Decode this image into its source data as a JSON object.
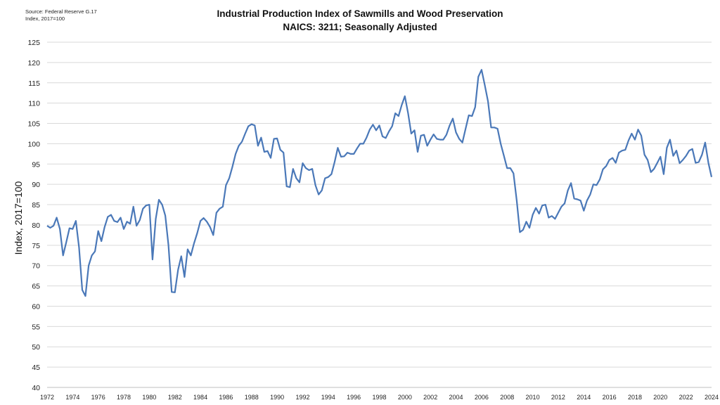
{
  "source_note": {
    "line1": "Source: Federal Reserve G.17",
    "line2": "Index, 2017=100"
  },
  "chart_data": {
    "type": "line",
    "title": "Industrial Production Index of Sawmills and Wood Preservation",
    "subtitle": "NAICS: 3211; Seasonally Adjusted",
    "xlabel": "",
    "ylabel": "Index, 2017=100",
    "ylim": [
      40,
      125
    ],
    "yticks": [
      40,
      45,
      50,
      55,
      60,
      65,
      70,
      75,
      80,
      85,
      90,
      95,
      100,
      105,
      110,
      115,
      120,
      125
    ],
    "xlim": [
      1972,
      2024
    ],
    "xticks": [
      1972,
      1974,
      1976,
      1978,
      1980,
      1982,
      1984,
      1986,
      1988,
      1990,
      1992,
      1994,
      1996,
      1998,
      2000,
      2002,
      2004,
      2006,
      2008,
      2010,
      2012,
      2014,
      2016,
      2018,
      2020,
      2022,
      2024
    ],
    "grid": "horizontal",
    "line_color": "#4a78b8",
    "series": [
      {
        "x": [
          1972.0,
          1972.25,
          1972.5,
          1972.75,
          1973.0,
          1973.25,
          1973.5,
          1973.75,
          1974.0,
          1974.25,
          1974.5,
          1974.75,
          1975.0,
          1975.25,
          1975.5,
          1975.75,
          1976.0,
          1976.25,
          1976.5,
          1976.75,
          1977.0,
          1977.25,
          1977.5,
          1977.75,
          1978.0,
          1978.25,
          1978.5,
          1978.75,
          1979.0,
          1979.25,
          1979.5,
          1979.75,
          1980.0,
          1980.25,
          1980.5,
          1980.75,
          1981.0,
          1981.25,
          1981.5,
          1981.75,
          1982.0,
          1982.25,
          1982.5,
          1982.75,
          1983.0,
          1983.25,
          1983.5,
          1983.75,
          1984.0,
          1984.25,
          1984.5,
          1984.75,
          1985.0,
          1985.25,
          1985.5,
          1985.75,
          1986.0,
          1986.25,
          1986.5,
          1986.75,
          1987.0,
          1987.25,
          1987.5,
          1987.75,
          1988.0,
          1988.25,
          1988.5,
          1988.75,
          1989.0,
          1989.25,
          1989.5,
          1989.75,
          1990.0,
          1990.25,
          1990.5,
          1990.75,
          1991.0,
          1991.25,
          1991.5,
          1991.75,
          1992.0,
          1992.25,
          1992.5,
          1992.75,
          1993.0,
          1993.25,
          1993.5,
          1993.75,
          1994.0,
          1994.25,
          1994.5,
          1994.75,
          1995.0,
          1995.25,
          1995.5,
          1995.75,
          1996.0,
          1996.25,
          1996.5,
          1996.75,
          1997.0,
          1997.25,
          1997.5,
          1997.75,
          1998.0,
          1998.25,
          1998.5,
          1998.75,
          1999.0,
          1999.25,
          1999.5,
          1999.75,
          2000.0,
          2000.25,
          2000.5,
          2000.75,
          2001.0,
          2001.25,
          2001.5,
          2001.75,
          2002.0,
          2002.25,
          2002.5,
          2002.75,
          2003.0,
          2003.25,
          2003.5,
          2003.75,
          2004.0,
          2004.25,
          2004.5,
          2004.75,
          2005.0,
          2005.25,
          2005.5,
          2005.75,
          2006.0,
          2006.25,
          2006.5,
          2006.75,
          2007.0,
          2007.25,
          2007.5,
          2007.75,
          2008.0,
          2008.25,
          2008.5,
          2008.75,
          2009.0,
          2009.25,
          2009.5,
          2009.75,
          2010.0,
          2010.25,
          2010.5,
          2010.75,
          2011.0,
          2011.25,
          2011.5,
          2011.75,
          2012.0,
          2012.25,
          2012.5,
          2012.75,
          2013.0,
          2013.25,
          2013.5,
          2013.75,
          2014.0,
          2014.25,
          2014.5,
          2014.75,
          2015.0,
          2015.25,
          2015.5,
          2015.75,
          2016.0,
          2016.25,
          2016.5,
          2016.75,
          2017.0,
          2017.25,
          2017.5,
          2017.75,
          2018.0,
          2018.25,
          2018.5,
          2018.75,
          2019.0,
          2019.25,
          2019.5,
          2019.75,
          2020.0,
          2020.25,
          2020.5,
          2020.75,
          2021.0,
          2021.25,
          2021.5,
          2021.75,
          2022.0,
          2022.25,
          2022.5,
          2022.75,
          2023.0,
          2023.25,
          2023.5,
          2023.75,
          2024.0
        ],
        "values": [
          79.8,
          79.3,
          79.8,
          81.8,
          79.0,
          72.5,
          75.8,
          79.2,
          79.0,
          81.0,
          74.5,
          64.0,
          62.5,
          70.0,
          72.5,
          73.5,
          78.5,
          76.0,
          79.5,
          82.0,
          82.5,
          81.0,
          80.7,
          81.8,
          79.0,
          80.8,
          80.3,
          84.5,
          79.8,
          81.2,
          84.0,
          84.8,
          85.0,
          71.5,
          81.5,
          86.2,
          85.0,
          82.3,
          75.0,
          63.5,
          63.4,
          69.0,
          72.3,
          67.2,
          74.0,
          72.5,
          75.5,
          78.0,
          81.0,
          81.7,
          80.8,
          79.5,
          77.5,
          83.0,
          84.0,
          84.5,
          89.8,
          91.5,
          94.3,
          97.5,
          99.5,
          100.5,
          102.5,
          104.3,
          104.8,
          104.5,
          99.5,
          101.5,
          98.0,
          98.2,
          96.5,
          101.2,
          101.3,
          98.5,
          97.8,
          89.5,
          89.3,
          93.8,
          91.5,
          90.5,
          95.2,
          94.0,
          93.5,
          93.8,
          89.8,
          87.5,
          88.5,
          91.5,
          91.8,
          92.5,
          95.5,
          99.0,
          96.8,
          96.9,
          97.8,
          97.5,
          97.5,
          98.8,
          100.0,
          100.0,
          101.5,
          103.5,
          104.7,
          103.3,
          104.5,
          101.8,
          101.4,
          103.0,
          104.3,
          107.5,
          106.8,
          109.5,
          111.7,
          107.5,
          102.5,
          103.3,
          98.0,
          102.0,
          102.2,
          99.5,
          101.0,
          102.3,
          101.2,
          101.0,
          101.0,
          102.2,
          104.5,
          106.2,
          102.8,
          101.2,
          100.3,
          103.7,
          107.0,
          106.8,
          109.0,
          116.5,
          118.2,
          114.5,
          110.5,
          104.0,
          104.0,
          103.7,
          100.0,
          97.0,
          94.0,
          94.0,
          92.7,
          86.0,
          78.2,
          78.8,
          80.8,
          79.3,
          82.5,
          84.2,
          82.8,
          84.8,
          85.0,
          81.8,
          82.2,
          81.5,
          83.0,
          84.5,
          85.3,
          88.5,
          90.3,
          86.5,
          86.3,
          86.0,
          83.5,
          86.0,
          87.5,
          90.0,
          89.8,
          91.2,
          93.7,
          94.5,
          96.0,
          96.5,
          95.3,
          97.8,
          98.3,
          98.5,
          100.8,
          102.5,
          101.0,
          103.5,
          102.0,
          97.3,
          96.0,
          93.0,
          93.8,
          95.3,
          96.8,
          92.5,
          99.0,
          101.0,
          97.0,
          98.3,
          95.2,
          96.0,
          97.0,
          98.3,
          98.7,
          95.3,
          95.5,
          97.3,
          100.3,
          95.3,
          91.8
        ]
      }
    ]
  }
}
